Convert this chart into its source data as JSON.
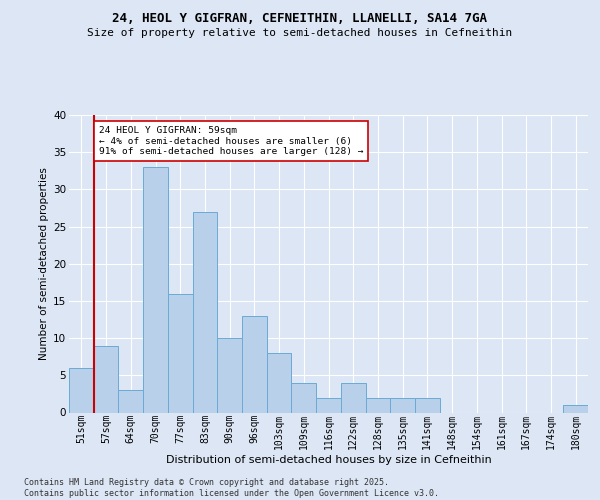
{
  "title_line1": "24, HEOL Y GIGFRAN, CEFNEITHIN, LLANELLI, SA14 7GA",
  "title_line2": "Size of property relative to semi-detached houses in Cefneithin",
  "xlabel": "Distribution of semi-detached houses by size in Cefneithin",
  "ylabel": "Number of semi-detached properties",
  "categories": [
    "51sqm",
    "57sqm",
    "64sqm",
    "70sqm",
    "77sqm",
    "83sqm",
    "90sqm",
    "96sqm",
    "103sqm",
    "109sqm",
    "116sqm",
    "122sqm",
    "128sqm",
    "135sqm",
    "141sqm",
    "148sqm",
    "154sqm",
    "161sqm",
    "167sqm",
    "174sqm",
    "180sqm"
  ],
  "values": [
    6,
    9,
    3,
    33,
    16,
    27,
    10,
    13,
    8,
    4,
    2,
    4,
    2,
    2,
    2,
    0,
    0,
    0,
    0,
    0,
    1
  ],
  "bar_color": "#b8d0ea",
  "bar_edge_color": "#6aaad4",
  "highlight_bar_index": 1,
  "highlight_color": "#cc0000",
  "annotation_text": "24 HEOL Y GIGFRAN: 59sqm\n← 4% of semi-detached houses are smaller (6)\n91% of semi-detached houses are larger (128) →",
  "annotation_box_color": "#ffffff",
  "annotation_box_edge": "#cc0000",
  "footer_text": "Contains HM Land Registry data © Crown copyright and database right 2025.\nContains public sector information licensed under the Open Government Licence v3.0.",
  "ylim": [
    0,
    40
  ],
  "yticks": [
    0,
    5,
    10,
    15,
    20,
    25,
    30,
    35,
    40
  ],
  "background_color": "#dce6f5",
  "plot_background_color": "#dce6f5",
  "grid_color": "#ffffff",
  "title_fontsize": 9,
  "subtitle_fontsize": 8,
  "xlabel_fontsize": 8,
  "ylabel_fontsize": 7.5,
  "tick_fontsize": 7,
  "footer_fontsize": 6
}
